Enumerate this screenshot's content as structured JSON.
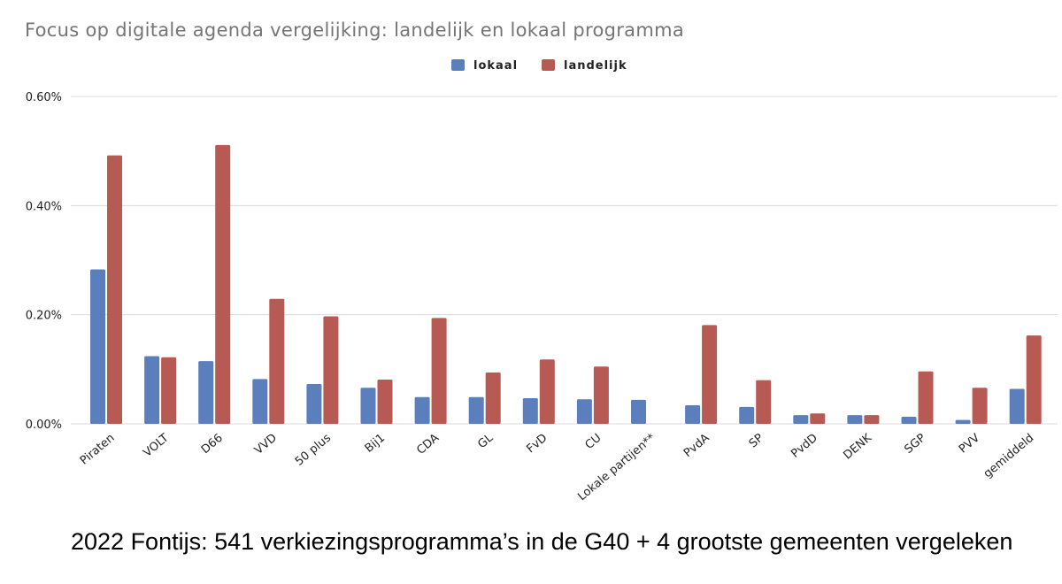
{
  "chart_data": {
    "type": "bar",
    "title": "Focus op digitale agenda vergelijking: landelijk en lokaal programma",
    "categories": [
      "Piraten",
      "VOLT",
      "D66",
      "VVD",
      "50 plus",
      "Bij1",
      "CDA",
      "GL",
      "FvD",
      "CU",
      "Lokale partijen**",
      "PvdA",
      "SP",
      "PvdD",
      "DENK",
      "SGP",
      "PVV",
      "gemiddeld"
    ],
    "series": [
      {
        "name": "lokaal",
        "color": "#5b7fbd",
        "values": [
          0.283,
          0.124,
          0.115,
          0.082,
          0.073,
          0.066,
          0.049,
          0.049,
          0.047,
          0.045,
          0.044,
          0.034,
          0.031,
          0.016,
          0.016,
          0.013,
          0.007,
          0.064
        ]
      },
      {
        "name": "landelijk",
        "color": "#b85a54",
        "values": [
          0.492,
          0.122,
          0.511,
          0.229,
          0.197,
          0.081,
          0.194,
          0.094,
          0.118,
          0.105,
          null,
          0.181,
          0.08,
          0.019,
          0.016,
          0.096,
          0.066,
          0.162
        ]
      }
    ],
    "ylim": [
      0,
      0.6
    ],
    "yticks": [
      0,
      0.2,
      0.4,
      0.6
    ],
    "ytick_labels": [
      "0.00%",
      "0.20%",
      "0.40%",
      "0.60%"
    ],
    "grid": true,
    "legend_position": "top-center",
    "xlabel": "",
    "ylabel": ""
  },
  "caption": "2022 Fontijs: 541 verkiezingsprogramma’s in de G40 + 4 grootste gemeenten vergeleken"
}
